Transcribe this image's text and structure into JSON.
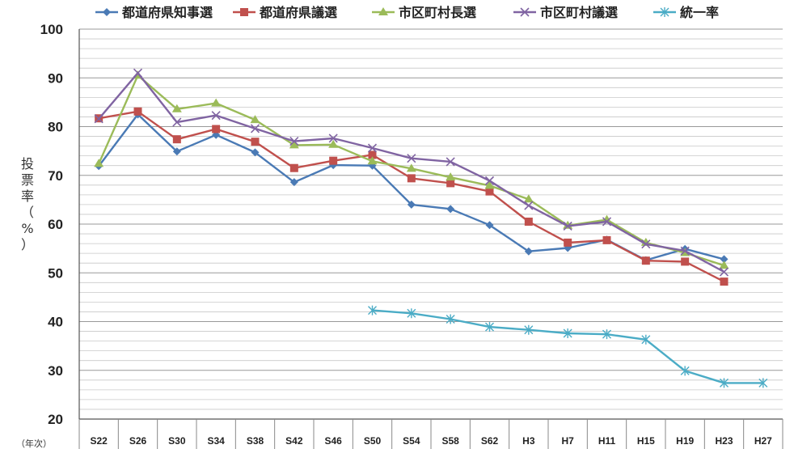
{
  "chart_data": {
    "type": "line",
    "title": "",
    "xlabel": "（年次）",
    "ylabel": "投票率（%）",
    "ylim": [
      20,
      100
    ],
    "y_ticks": [
      20,
      30,
      40,
      50,
      60,
      70,
      80,
      90,
      100
    ],
    "grid": true,
    "legend_position": "top",
    "categories": [
      "S22",
      "S26",
      "S30",
      "S34",
      "S38",
      "S42",
      "S46",
      "S50",
      "S54",
      "S58",
      "S62",
      "H3",
      "H7",
      "H11",
      "H15",
      "H19",
      "H23",
      "H27"
    ],
    "series": [
      {
        "name": "都道府県知事選",
        "color": "#4a7ab5",
        "marker": "diamond",
        "values": [
          71.9,
          82.5,
          74.9,
          78.3,
          74.7,
          68.6,
          72.1,
          72.0,
          64.0,
          63.1,
          59.8,
          54.4,
          55.1,
          56.8,
          52.6,
          54.9,
          52.8,
          null
        ]
      },
      {
        "name": "都道府県議選",
        "color": "#c0504d",
        "marker": "square",
        "values": [
          81.7,
          83.1,
          77.4,
          79.5,
          76.9,
          71.5,
          73.0,
          74.2,
          69.4,
          68.4,
          66.7,
          60.5,
          56.2,
          56.7,
          52.5,
          52.3,
          48.2,
          null
        ]
      },
      {
        "name": "市区町村長選",
        "color": "#9bbb59",
        "marker": "triangle",
        "values": [
          72.4,
          90.5,
          83.6,
          84.8,
          81.4,
          76.2,
          76.3,
          72.9,
          71.4,
          69.6,
          67.9,
          65.1,
          59.7,
          60.9,
          56.2,
          54.1,
          51.5,
          null
        ]
      },
      {
        "name": "市区町村議選",
        "color": "#8064a2",
        "marker": "x",
        "values": [
          81.6,
          91.0,
          80.9,
          82.3,
          79.6,
          77.0,
          77.6,
          75.6,
          73.5,
          72.8,
          68.9,
          63.8,
          59.6,
          60.5,
          55.9,
          54.5,
          50.2,
          null
        ]
      },
      {
        "name": "統一率",
        "color": "#4bacc6",
        "marker": "star",
        "values": [
          null,
          null,
          null,
          null,
          null,
          null,
          null,
          42.3,
          41.7,
          40.5,
          38.9,
          38.3,
          37.6,
          37.4,
          36.3,
          29.9,
          27.4,
          27.4
        ]
      }
    ]
  }
}
